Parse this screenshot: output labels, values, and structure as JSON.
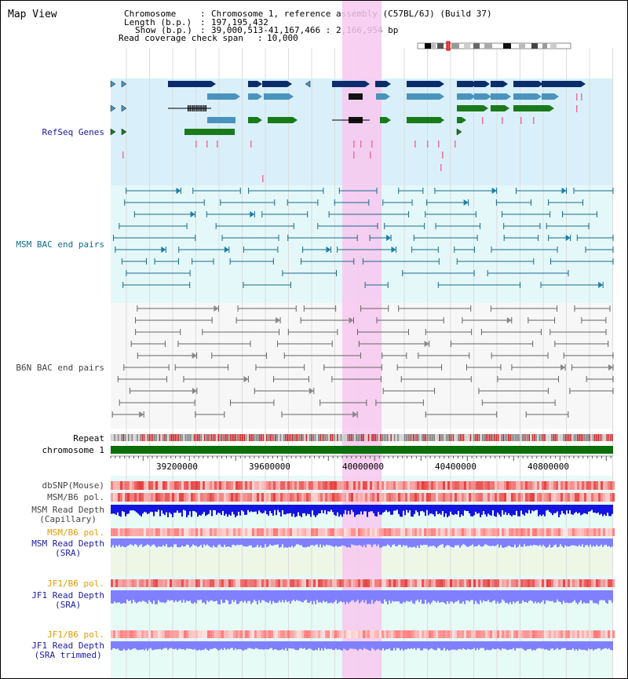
{
  "window": {
    "title": "Map View"
  },
  "info": {
    "chromosome_key": "Chromosome",
    "chromosome_val": "Chromosome 1, reference assembly (C57BL/6J) (Build 37)",
    "length_key": "Length (b.p.)",
    "length_val": "197,195,432",
    "show_key": "Show (b.p.)",
    "show_val": "39,000,513-41,167,466 : 2,166,954 bp",
    "coverage_key": "Read coverage check span",
    "coverage_val": "10,000"
  },
  "tracks": {
    "refseq": "RefSeq Genes",
    "msm_bac": "MSM BAC end pairs",
    "b6n_bac": "B6N BAC end pairs",
    "repeat": "Repeat",
    "chromosome": "chromosome 1",
    "dbsnp": "dbSNP(Mouse)",
    "msm_b6_pol": "MSM/B6 pol.",
    "msm_depth_cap_1": "MSM Read Depth",
    "msm_depth_cap_2": "(Capillary)",
    "msm_b6_pol2": "MSM/B6 pol.",
    "msm_depth_sra_1": "MSM Read Depth",
    "msm_depth_sra_2": "(SRA)",
    "jf1_b6_pol": "JF1/B6 pol.",
    "jf1_depth_sra_1": "JF1 Read Depth",
    "jf1_depth_sra_2": "(SRA)",
    "jf1_b6_pol2": "JF1/B6 pol.",
    "jf1_depth_trim_1": "JF1 Read Depth",
    "jf1_depth_trim_2": "(SRA trimmed)"
  },
  "axis": {
    "ticks": [
      "39200000",
      "39600000",
      "40000000",
      "40400000",
      "40800000"
    ]
  },
  "colors": {
    "refseq_dark": "#0c2d6b",
    "refseq_light": "#4a93bd",
    "refseq_green": "#1a7a1a",
    "highlight": "#f7c8ef",
    "repeat_red": "#c81e1e",
    "chrom_green": "#0a6e0a",
    "depth_blue": "#1414e0",
    "depth_light": "#8080ff"
  }
}
